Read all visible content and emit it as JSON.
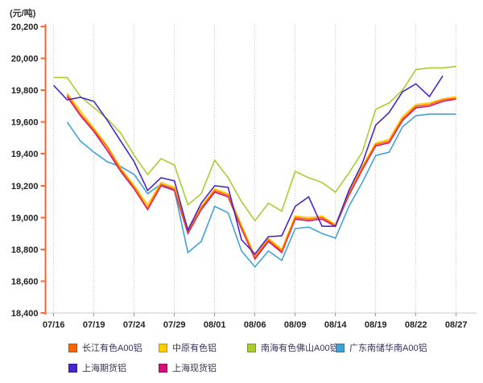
{
  "unit_label": "(元/吨)",
  "chart_data": {
    "type": "line",
    "title": "",
    "ylabel": "(元/吨)",
    "xlabel": "",
    "grid": "vertical-dotted",
    "legend_position": "bottom",
    "y_axis": {
      "min": 18400,
      "max": 20200,
      "step": 200,
      "tick_labels": [
        "18,400",
        "18,600",
        "18,800",
        "19,000",
        "19,200",
        "19,400",
        "19,600",
        "19,800",
        "20,000",
        "20,200"
      ],
      "axis_color": "#FF6633"
    },
    "x_axis": {
      "n_points": 31,
      "tick_indices": [
        0,
        3,
        6,
        9,
        12,
        15,
        18,
        21,
        24,
        27,
        30
      ],
      "tick_labels": [
        "07/16",
        "07/19",
        "07/24",
        "07/29",
        "08/01",
        "08/06",
        "08/09",
        "08/14",
        "08/19",
        "08/22",
        "08/27"
      ],
      "axis_color": "#CCCCCC",
      "tick_color": "#999999"
    },
    "series": [
      {
        "name": "长江有色A00铝",
        "color": "#FF6600",
        "values": [
          null,
          19770,
          19650,
          19550,
          19440,
          19300,
          19190,
          19060,
          19210,
          19180,
          18910,
          19060,
          19170,
          19140,
          18940,
          18750,
          18860,
          18790,
          19000,
          18990,
          19000,
          18950,
          19150,
          19310,
          19460,
          19480,
          19620,
          19700,
          19710,
          19740,
          19750
        ]
      },
      {
        "name": "中原有色铝",
        "color": "#FFCC00",
        "values": [
          null,
          19780,
          19670,
          19560,
          19450,
          19310,
          19200,
          19080,
          19220,
          19190,
          18930,
          19070,
          19180,
          19150,
          18950,
          18760,
          18870,
          18800,
          19010,
          19000,
          19010,
          18955,
          19160,
          19320,
          19470,
          19490,
          19635,
          19710,
          19720,
          19745,
          19760
        ]
      },
      {
        "name": "南海有色佛山A00铝",
        "color": "#A9CC33",
        "values": [
          19880,
          19880,
          19760,
          19690,
          19620,
          19530,
          19390,
          19270,
          19370,
          19330,
          19080,
          19150,
          19360,
          19250,
          19100,
          18980,
          19090,
          19040,
          19290,
          19250,
          19220,
          19160,
          19280,
          19410,
          19680,
          19720,
          19800,
          19930,
          19940,
          19940,
          19950
        ]
      },
      {
        "name": "广东南储华南A00铝",
        "color": "#3FA2D9",
        "values": [
          null,
          19600,
          19480,
          19410,
          19350,
          19320,
          19270,
          19150,
          19210,
          19170,
          18780,
          18850,
          19070,
          19030,
          18790,
          18690,
          18790,
          18730,
          18930,
          18940,
          18900,
          18870,
          19070,
          19220,
          19390,
          19410,
          19570,
          19640,
          19650,
          19650,
          19650
        ]
      },
      {
        "name": "上海期货铝",
        "color": "#4826C9",
        "values": [
          19830,
          19740,
          19755,
          19730,
          19610,
          19480,
          19350,
          19170,
          19250,
          19230,
          18920,
          19090,
          19200,
          19190,
          18860,
          18770,
          18880,
          18885,
          19070,
          19130,
          18945,
          18945,
          19170,
          19340,
          19580,
          19660,
          19790,
          19840,
          19760,
          19890,
          null
        ]
      },
      {
        "name": "上海现货铝",
        "color": "#D40D77",
        "values": [
          null,
          19760,
          19640,
          19540,
          19420,
          19290,
          19180,
          19050,
          19200,
          19170,
          18900,
          19050,
          19160,
          19130,
          18930,
          18740,
          18850,
          18780,
          18990,
          18980,
          18990,
          18945,
          19140,
          19300,
          19450,
          19470,
          19610,
          19690,
          19700,
          19730,
          19745
        ]
      }
    ]
  },
  "legend": {
    "rows": [
      [
        0,
        1,
        2,
        3
      ],
      [
        4,
        5
      ]
    ]
  }
}
